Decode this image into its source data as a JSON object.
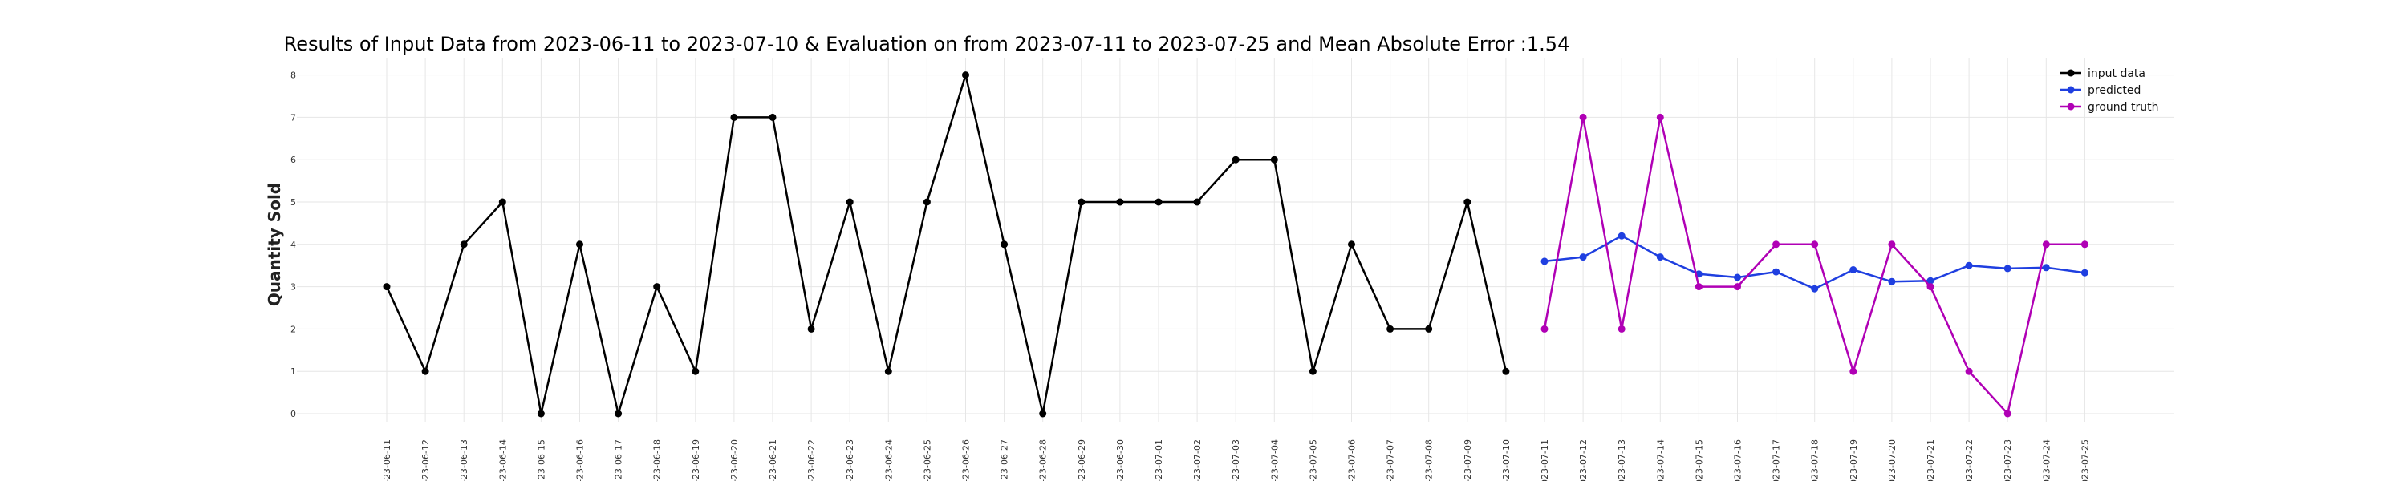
{
  "chart_data": {
    "type": "line",
    "title": "Results of Input Data from 2023-06-11 to 2023-07-10 & Evaluation on from 2023-07-11 to 2023-07-25 and Mean Absolute Error  :1.54",
    "xlabel": "",
    "ylabel": "Quantity Sold",
    "ylim": [
      -0.4,
      8.4
    ],
    "yticks": [
      "0",
      "1",
      "2",
      "3",
      "4",
      "5",
      "6",
      "7",
      "8"
    ],
    "grid": true,
    "legend_position": "top-right",
    "x": [
      "2023-06-11",
      "2023-06-12",
      "2023-06-13",
      "2023-06-14",
      "2023-06-15",
      "2023-06-16",
      "2023-06-17",
      "2023-06-18",
      "2023-06-19",
      "2023-06-20",
      "2023-06-21",
      "2023-06-22",
      "2023-06-23",
      "2023-06-24",
      "2023-06-25",
      "2023-06-26",
      "2023-06-27",
      "2023-06-28",
      "2023-06-29",
      "2023-06-30",
      "2023-07-01",
      "2023-07-02",
      "2023-07-03",
      "2023-07-04",
      "2023-07-05",
      "2023-07-06",
      "2023-07-07",
      "2023-07-08",
      "2023-07-09",
      "2023-07-10",
      "2023-07-11",
      "2023-07-12",
      "2023-07-13",
      "2023-07-14",
      "2023-07-15",
      "2023-07-16",
      "2023-07-17",
      "2023-07-18",
      "2023-07-19",
      "2023-07-20",
      "2023-07-21",
      "2023-07-22",
      "2023-07-23",
      "2023-07-24",
      "2023-07-25"
    ],
    "xtick_labels": [
      "-23-06-11",
      "-23-06-12",
      "-23-06-13",
      "-23-06-14",
      "-23-06-15",
      "-23-06-16",
      "-23-06-17",
      "-23-06-18",
      "-23-06-19",
      "-23-06-20",
      "-23-06-21",
      "-23-06-22",
      "-23-06-23",
      "-23-06-24",
      "-23-06-25",
      "-23-06-26",
      "-23-06-27",
      "-23-06-28",
      "-23-06-29",
      "-23-06-30",
      "-23-07-01",
      "-23-07-02",
      "-23-07-03",
      "-23-07-04",
      "-23-07-05",
      "-23-07-06",
      "-23-07-07",
      "-23-07-08",
      "-23-07-09",
      "-23-07-10",
      "2023-07-11",
      "2023-07-12",
      "2023-07-13",
      "2023-07-14",
      "2023-07-15",
      "2023-07-16",
      "2023-07-17",
      "2023-07-18",
      "2023-07-19",
      "2023-07-20",
      "2023-07-21",
      "2023-07-22",
      "2023-07-23",
      "2023-07-24",
      "2023-07-25"
    ],
    "series": [
      {
        "name": "input data",
        "color": "#000000",
        "x": [
          "2023-06-11",
          "2023-06-12",
          "2023-06-13",
          "2023-06-14",
          "2023-06-15",
          "2023-06-16",
          "2023-06-17",
          "2023-06-18",
          "2023-06-19",
          "2023-06-20",
          "2023-06-21",
          "2023-06-22",
          "2023-06-23",
          "2023-06-24",
          "2023-06-25",
          "2023-06-26",
          "2023-06-27",
          "2023-06-28",
          "2023-06-29",
          "2023-06-30",
          "2023-07-01",
          "2023-07-02",
          "2023-07-03",
          "2023-07-04",
          "2023-07-05",
          "2023-07-06",
          "2023-07-07",
          "2023-07-08",
          "2023-07-09",
          "2023-07-10"
        ],
        "values": [
          3,
          1,
          4,
          5,
          0,
          4,
          0,
          3,
          1,
          7,
          7,
          2,
          5,
          1,
          5,
          8,
          4,
          0,
          5,
          5,
          5,
          5,
          6,
          6,
          1,
          4,
          2,
          2,
          5,
          1
        ]
      },
      {
        "name": "predicted",
        "color": "#1f3fe0",
        "x": [
          "2023-07-11",
          "2023-07-12",
          "2023-07-13",
          "2023-07-14",
          "2023-07-15",
          "2023-07-16",
          "2023-07-17",
          "2023-07-18",
          "2023-07-19",
          "2023-07-20",
          "2023-07-21",
          "2023-07-22",
          "2023-07-23",
          "2023-07-24",
          "2023-07-25"
        ],
        "values": [
          3.6,
          3.7,
          4.2,
          3.7,
          3.3,
          3.22,
          3.35,
          2.95,
          3.4,
          3.12,
          3.14,
          3.5,
          3.43,
          3.45,
          3.33
        ]
      },
      {
        "name": "ground truth",
        "color": "#b000b5",
        "x": [
          "2023-07-11",
          "2023-07-12",
          "2023-07-13",
          "2023-07-14",
          "2023-07-15",
          "2023-07-16",
          "2023-07-17",
          "2023-07-18",
          "2023-07-19",
          "2023-07-20",
          "2023-07-21",
          "2023-07-22",
          "2023-07-23",
          "2023-07-24",
          "2023-07-25"
        ],
        "values": [
          2,
          7,
          2,
          7,
          3,
          3,
          4,
          4,
          1,
          4,
          3,
          1,
          0,
          4,
          4
        ]
      }
    ]
  }
}
